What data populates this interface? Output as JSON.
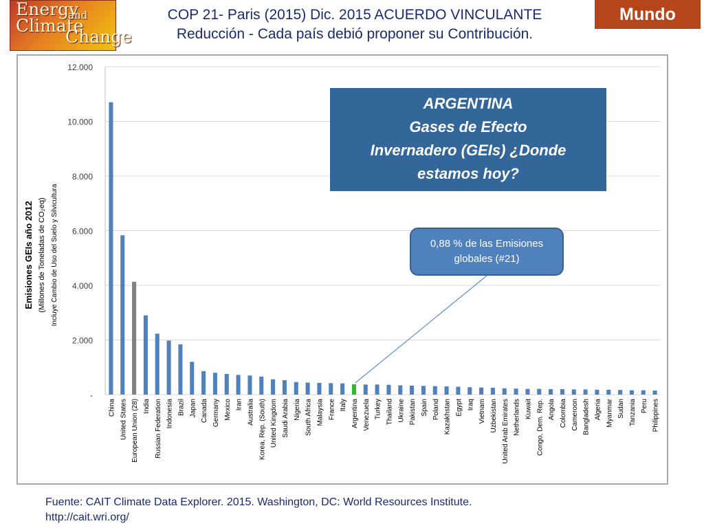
{
  "logo": {
    "line1": "Energy",
    "line2": "and",
    "line3": "Climate",
    "line4": "Change"
  },
  "header": {
    "title_line1": "COP 21- Paris (2015) Dic. 2015 ACUERDO VINCULANTE",
    "title_line2": "Reducción - Cada país debió proponer su Contribución.",
    "badge": "Mundo"
  },
  "info_box": {
    "lines": [
      "ARGENTINA",
      "Gases de Efecto",
      "Invernadero (GEIs) ¿Donde",
      "estamos hoy?"
    ]
  },
  "callout": {
    "line1": "0,88 % de las Emisiones",
    "line2": "globales (#21)"
  },
  "source": {
    "line1": "Fuente: CAIT Climate Data Explorer. 2015. Washington, DC: World Resources Institute.",
    "line2": "http://cait.wri.org/"
  },
  "colors": {
    "bar": "#4f81bd",
    "highlight_eu": "#808080",
    "highlight_ar": "#2eb82e",
    "grid": "#d9d9d9",
    "callout_line": "#5b8fd6"
  },
  "chart_data": {
    "type": "bar",
    "ylabel_main": "Emisiones GEIs año 2012",
    "ylabel_sub1": "(Millones de Toneladas de CO₂eq)",
    "ylabel_sub2": "Incluye Cambio de Uso del Suelo y Silvicultura",
    "ylim": [
      0,
      12000
    ],
    "yticks": [
      0,
      2000,
      4000,
      6000,
      8000,
      10000,
      12000
    ],
    "ytick_labels": [
      "-",
      "2.000",
      "4.000",
      "6.000",
      "8.000",
      "10.000",
      "12.000"
    ],
    "grid": true,
    "highlight": {
      "European Union (28)": "gray",
      "Argentina": "green"
    },
    "categories": [
      "China",
      "United States",
      "European Union (28)",
      "India",
      "Russian Federation",
      "Indonesia",
      "Brazil",
      "Japan",
      "Canada",
      "Germany",
      "Mexico",
      "Iran",
      "Australia",
      "Korea, Rep. (South)",
      "United Kingdom",
      "Saudi Arabia",
      "Nigeria",
      "South Africa",
      "Malaysia",
      "France",
      "Italy",
      "Argentina",
      "Venezuela",
      "Turkey",
      "Thailand",
      "Ukraine",
      "Pakistan",
      "Spain",
      "Poland",
      "Kazakhstan",
      "Egypt",
      "Iraq",
      "Vietnam",
      "Uzbekistan",
      "United Arab Emirates",
      "Netherlands",
      "Kuwait",
      "Congo, Dem. Rep.",
      "Angola",
      "Colombia",
      "Cameroon",
      "Bangladesh",
      "Algeria",
      "Myanmar",
      "Sudan",
      "Tanzania",
      "Peru",
      "Philippines"
    ],
    "values": [
      10700,
      5830,
      4130,
      2900,
      2230,
      1980,
      1840,
      1200,
      860,
      800,
      760,
      720,
      700,
      660,
      560,
      530,
      460,
      440,
      430,
      420,
      410,
      380,
      370,
      370,
      360,
      340,
      330,
      320,
      310,
      300,
      290,
      270,
      260,
      250,
      230,
      220,
      210,
      210,
      200,
      200,
      190,
      190,
      180,
      180,
      170,
      160,
      160,
      150
    ]
  }
}
